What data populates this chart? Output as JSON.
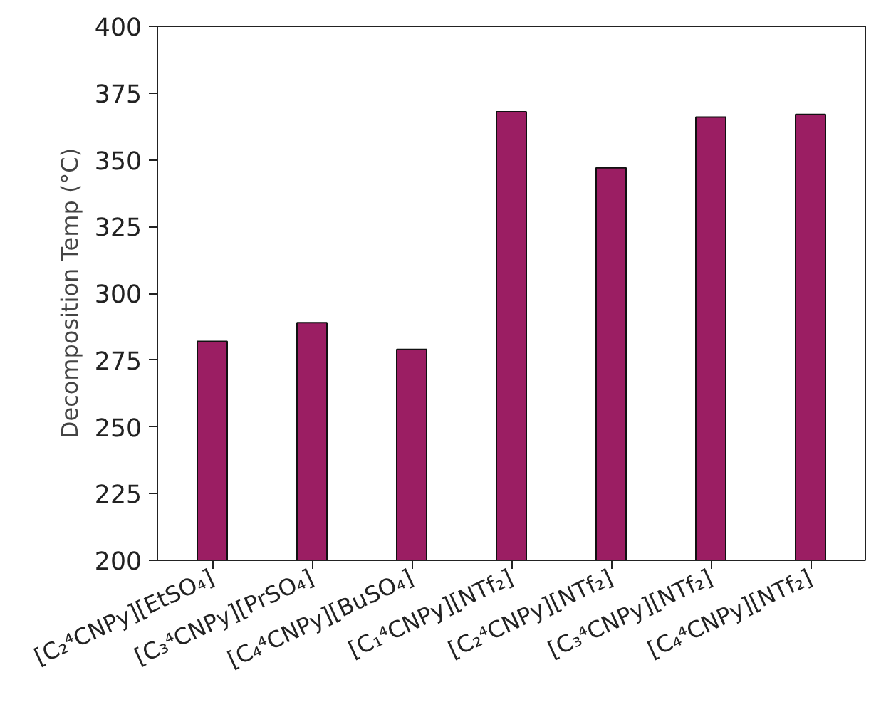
{
  "chart_data": {
    "type": "bar",
    "ylabel": "Decomposition Temp (°C)",
    "categories": [
      "[C₂⁴CNPy][EtSO₄]",
      "[C₃⁴CNPy][PrSO₄]",
      "[C₄⁴CNPy][BuSO₄]",
      "[C₁⁴CNPy][NTf₂]",
      "[C₂⁴CNPy][NTf₂]",
      "[C₃⁴CNPy][NTf₂]",
      "[C₄⁴CNPy][NTf₂]"
    ],
    "values": [
      282,
      289,
      279,
      368,
      347,
      366,
      367
    ],
    "color": "#9b1e63",
    "ylim": [
      200,
      400
    ],
    "yticks": [
      200,
      225,
      250,
      275,
      300,
      325,
      350,
      375,
      400
    ],
    "grid": false
  }
}
